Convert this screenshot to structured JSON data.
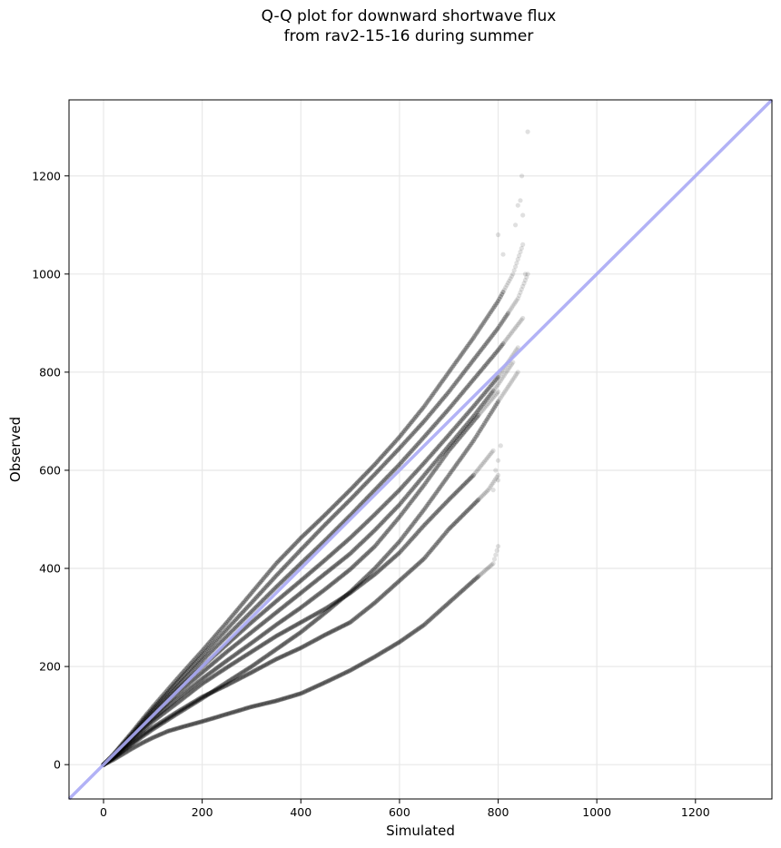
{
  "chart_data": {
    "type": "scatter",
    "title_line1": "Q-Q plot for downward shortwave flux",
    "title_line2": "from rav2-15-16 during summer",
    "xlabel": "Simulated",
    "ylabel": "Observed",
    "xlim": [
      -70,
      1355
    ],
    "ylim": [
      -70,
      1355
    ],
    "xticks": [
      0,
      200,
      400,
      600,
      800,
      1000,
      1200
    ],
    "yticks": [
      0,
      200,
      400,
      600,
      800,
      1000,
      1200
    ],
    "grid": true,
    "reference_line": {
      "from": [
        -70,
        -70
      ],
      "to": [
        1355,
        1355
      ],
      "color": "#aaaaf5"
    },
    "point_color": "#000000",
    "series": [
      {
        "x": [
          0,
          20,
          40,
          60,
          80,
          100,
          130,
          160,
          200,
          250,
          300,
          350,
          400,
          450,
          500,
          550,
          600,
          650,
          700,
          750,
          790,
          800
        ],
        "y": [
          0,
          10,
          22,
          34,
          45,
          55,
          68,
          77,
          88,
          103,
          118,
          130,
          145,
          168,
          192,
          220,
          250,
          285,
          330,
          375,
          410,
          445
        ]
      },
      {
        "x": [
          0,
          20,
          40,
          60,
          80,
          100,
          150,
          200,
          250,
          300,
          350,
          400,
          450,
          500,
          550,
          600,
          650,
          700,
          750,
          780,
          800
        ],
        "y": [
          0,
          14,
          30,
          46,
          62,
          76,
          108,
          138,
          162,
          188,
          215,
          238,
          265,
          290,
          330,
          375,
          420,
          480,
          530,
          560,
          590
        ]
      },
      {
        "x": [
          0,
          20,
          40,
          60,
          80,
          100,
          150,
          200,
          250,
          300,
          350,
          400,
          450,
          500,
          550,
          600,
          650,
          700,
          750,
          790
        ],
        "y": [
          0,
          15,
          33,
          52,
          70,
          88,
          126,
          165,
          198,
          230,
          262,
          290,
          318,
          350,
          388,
          432,
          488,
          540,
          590,
          640
        ]
      },
      {
        "x": [
          0,
          20,
          40,
          60,
          80,
          100,
          150,
          200,
          250,
          300,
          350,
          400,
          450,
          500,
          550,
          600,
          650,
          700,
          750,
          800
        ],
        "y": [
          0,
          16,
          35,
          55,
          74,
          93,
          135,
          175,
          212,
          248,
          285,
          320,
          358,
          398,
          445,
          505,
          570,
          640,
          700,
          760
        ]
      },
      {
        "x": [
          0,
          20,
          40,
          60,
          80,
          100,
          150,
          200,
          250,
          300,
          350,
          400,
          450,
          500,
          550,
          600,
          650,
          700,
          750,
          800,
          830
        ],
        "y": [
          0,
          17,
          37,
          58,
          78,
          98,
          145,
          188,
          230,
          270,
          310,
          350,
          390,
          430,
          478,
          530,
          590,
          650,
          710,
          775,
          820
        ]
      },
      {
        "x": [
          0,
          20,
          40,
          60,
          80,
          100,
          150,
          200,
          250,
          300,
          350,
          400,
          450,
          500,
          550,
          600,
          650,
          700,
          750,
          800,
          840
        ],
        "y": [
          0,
          18,
          39,
          60,
          82,
          103,
          153,
          200,
          245,
          290,
          333,
          375,
          418,
          462,
          510,
          560,
          615,
          672,
          730,
          790,
          850
        ]
      },
      {
        "x": [
          0,
          20,
          40,
          60,
          80,
          100,
          150,
          200,
          250,
          300,
          350,
          400,
          450,
          500,
          550,
          600,
          650,
          700,
          750,
          800,
          850
        ],
        "y": [
          0,
          19,
          41,
          63,
          86,
          108,
          160,
          212,
          262,
          312,
          362,
          410,
          458,
          508,
          560,
          612,
          668,
          725,
          785,
          845,
          910
        ]
      },
      {
        "x": [
          0,
          20,
          40,
          60,
          80,
          100,
          150,
          200,
          250,
          300,
          350,
          400,
          450,
          500,
          550,
          600,
          650,
          700,
          750,
          800,
          840,
          860
        ],
        "y": [
          0,
          20,
          43,
          66,
          90,
          113,
          168,
          222,
          276,
          330,
          385,
          438,
          490,
          540,
          592,
          645,
          700,
          760,
          825,
          890,
          950,
          1000
        ]
      },
      {
        "x": [
          0,
          20,
          40,
          60,
          80,
          100,
          150,
          200,
          250,
          300,
          350,
          400,
          450,
          500,
          550,
          600,
          650,
          700,
          750,
          800,
          830,
          850
        ],
        "y": [
          0,
          21,
          45,
          69,
          94,
          118,
          176,
          232,
          290,
          350,
          410,
          462,
          510,
          560,
          612,
          668,
          730,
          800,
          870,
          945,
          1000,
          1060
        ]
      },
      {
        "x": [
          0,
          20,
          40,
          60,
          80,
          100,
          150,
          200,
          250,
          300,
          350,
          400,
          450,
          500,
          550,
          600,
          650,
          700,
          750,
          800,
          840
        ],
        "y": [
          0,
          13,
          28,
          43,
          58,
          72,
          104,
          135,
          168,
          200,
          235,
          270,
          310,
          352,
          400,
          455,
          520,
          590,
          660,
          740,
          800
        ]
      }
    ],
    "outliers": {
      "x": [
        795,
        800,
        805,
        800,
        790,
        800,
        810,
        835,
        840,
        845,
        850,
        855,
        860,
        848
      ],
      "y": [
        600,
        620,
        650,
        580,
        560,
        1080,
        1040,
        1100,
        1140,
        1150,
        1120,
        1000,
        1290,
        1200
      ]
    }
  }
}
